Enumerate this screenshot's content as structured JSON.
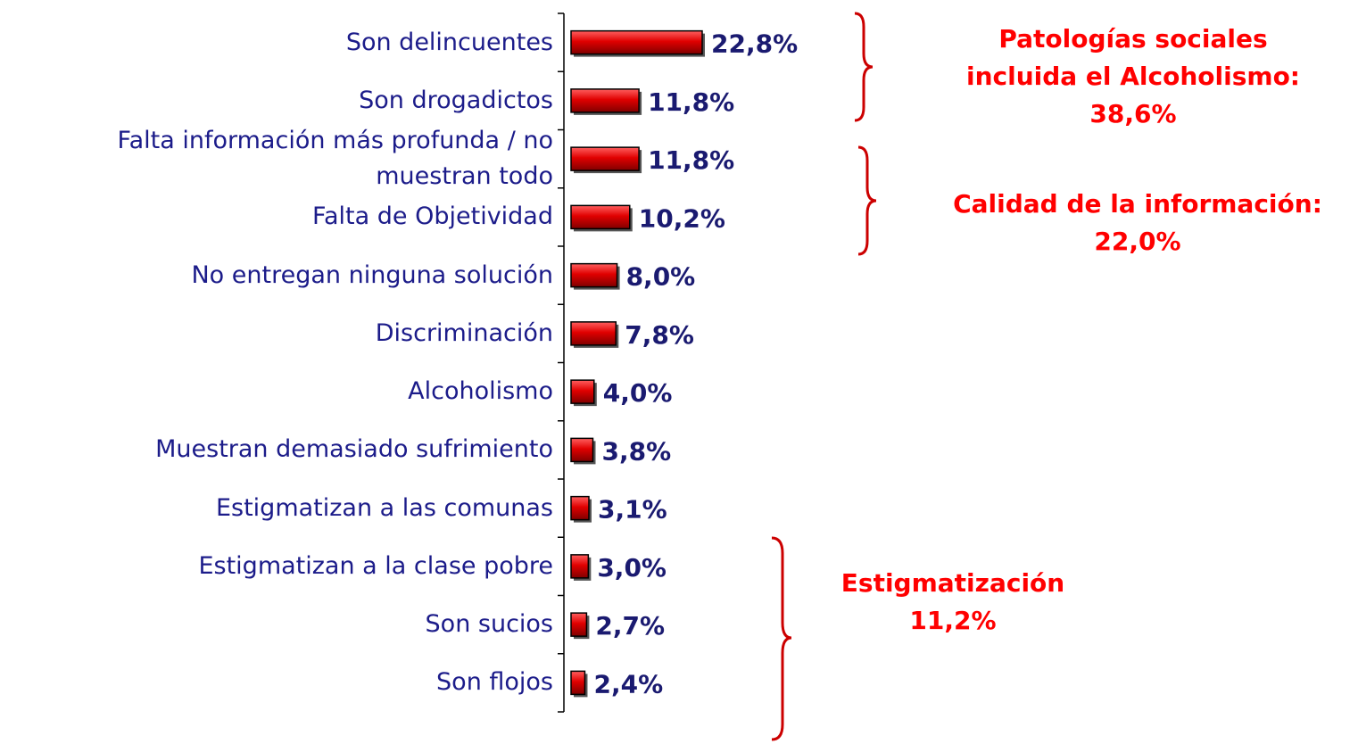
{
  "chart_data": {
    "type": "bar",
    "orientation": "horizontal",
    "color": "#e00000",
    "categories": [
      "Son delincuentes",
      "Son drogadictos",
      "Falta información más profunda / no muestran todo",
      "Falta de Objetividad",
      "No entregan ninguna solución",
      "Discriminación",
      "Alcoholismo",
      "Muestran demasiado sufrimiento",
      "Estigmatizan a las comunas",
      "Estigmatizan a la clase pobre",
      "Son sucios",
      "Son flojos"
    ],
    "values": [
      22.8,
      11.8,
      11.8,
      10.2,
      8.0,
      7.8,
      4.0,
      3.8,
      3.1,
      3.0,
      2.7,
      2.4
    ],
    "value_labels": [
      "22,8%",
      "11,8%",
      "11,8%",
      "10,2%",
      "8,0%",
      "7,8%",
      "4,0%",
      "3,8%",
      "3,1%",
      "3,0%",
      "2,7%",
      "2,4%"
    ],
    "annotations": [
      {
        "lines": [
          "Patologías sociales",
          "incluida el Alcoholismo:",
          "38,6%"
        ]
      },
      {
        "lines": [
          "Calidad de la información:",
          "22,0%"
        ]
      },
      {
        "lines": [
          "Estigmatización",
          "11,2%"
        ]
      }
    ]
  }
}
